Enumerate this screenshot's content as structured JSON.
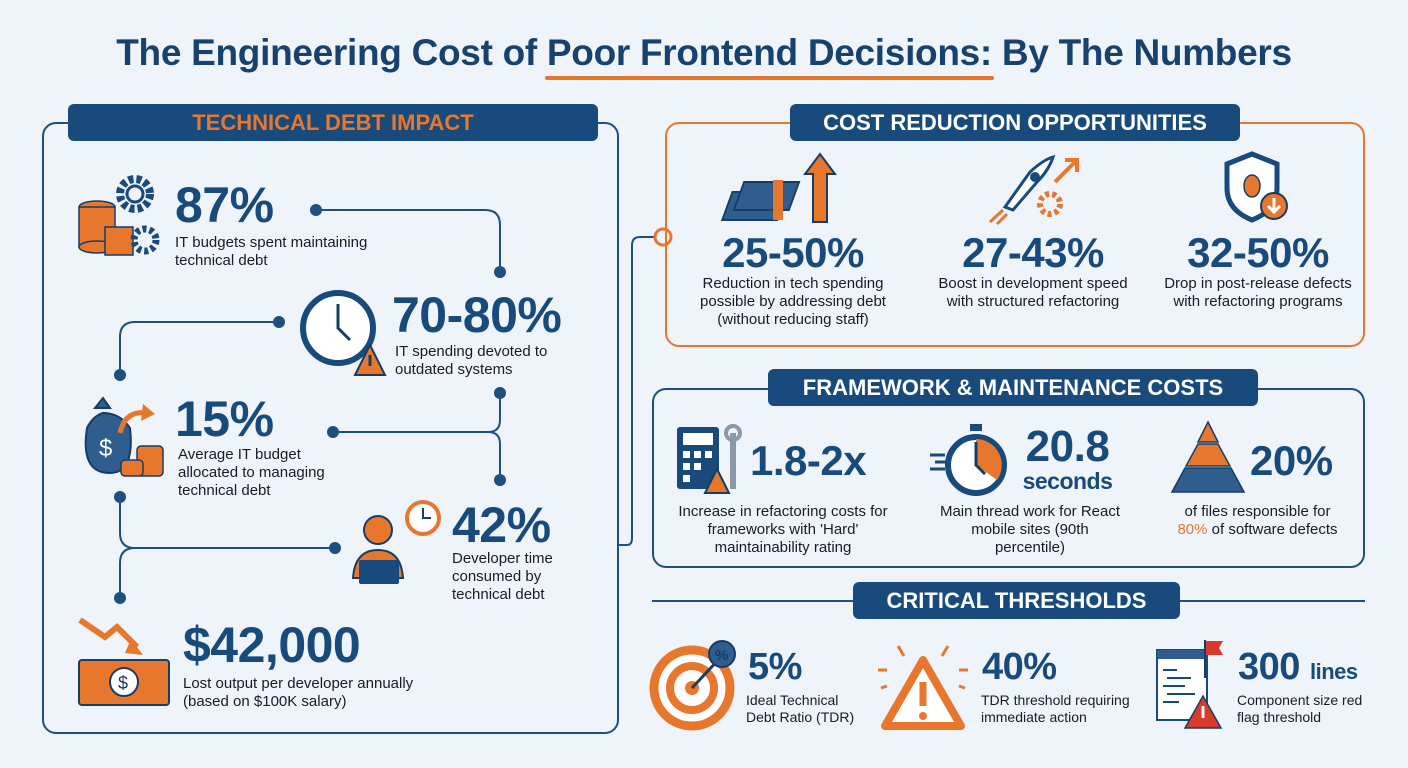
{
  "title": {
    "prefix": "The Engineering Cost of ",
    "highlight": "Poor Frontend Decisions:",
    "suffix": " By The Numbers"
  },
  "technical_debt": {
    "header": "TECHNICAL DEBT IMPACT",
    "items": [
      {
        "value": "87%",
        "desc": "IT budgets spent maintaining technical debt",
        "icon": "gears-coins-icon"
      },
      {
        "value": "70-80%",
        "desc": "IT spending devoted to outdated systems",
        "icon": "clock-warning-icon"
      },
      {
        "value": "15%",
        "desc": "Average IT budget allocated to managing technical debt",
        "icon": "money-bag-icon"
      },
      {
        "value": "42%",
        "desc": "Developer time consumed by technical debt",
        "icon": "developer-clock-icon"
      },
      {
        "value": "$42,000",
        "desc": "Lost output per developer annually (based on $100K salary)",
        "icon": "falling-money-icon"
      }
    ]
  },
  "cost_reduction": {
    "header": "COST REDUCTION OPPORTUNITIES",
    "items": [
      {
        "value": "25-50%",
        "desc": "Reduction in tech spending possible by addressing debt (without reducing staff)",
        "icon": "cash-arrow-up-icon"
      },
      {
        "value": "27-43%",
        "desc": "Boost in development speed with structured refactoring",
        "icon": "rocket-gear-icon"
      },
      {
        "value": "32-50%",
        "desc": "Drop in post-release defects with refactoring programs",
        "icon": "shield-bug-icon"
      }
    ]
  },
  "framework": {
    "header": "FRAMEWORK & MAINTENANCE COSTS",
    "items": [
      {
        "value": "1.8-2x",
        "desc": "Increase in refactoring costs for frameworks with 'Hard' maintainability rating",
        "icon": "calculator-wrench-icon"
      },
      {
        "value": "20.8",
        "unit": "seconds",
        "desc": "Main thread work for React mobile sites (90th percentile)",
        "icon": "stopwatch-icon"
      },
      {
        "value": "20%",
        "desc_pre": "of files responsible for",
        "desc_hl": "80%",
        "desc_post": " of software defects",
        "icon": "pyramid-icon"
      }
    ]
  },
  "thresholds": {
    "header": "CRITICAL THRESHOLDS",
    "items": [
      {
        "value": "5%",
        "desc": "Ideal Technical Debt Ratio (TDR)",
        "icon": "target-percent-icon"
      },
      {
        "value": "40%",
        "desc": "TDR threshold requiring immediate action",
        "icon": "warning-icon"
      },
      {
        "value": "300",
        "unit": "lines",
        "desc": "Component size red flag threshold",
        "icon": "code-file-flag-icon"
      }
    ]
  },
  "colors": {
    "navy": "#184a7b",
    "orange": "#e8772e",
    "background": "#eef4fa",
    "red": "#d93a2b"
  }
}
